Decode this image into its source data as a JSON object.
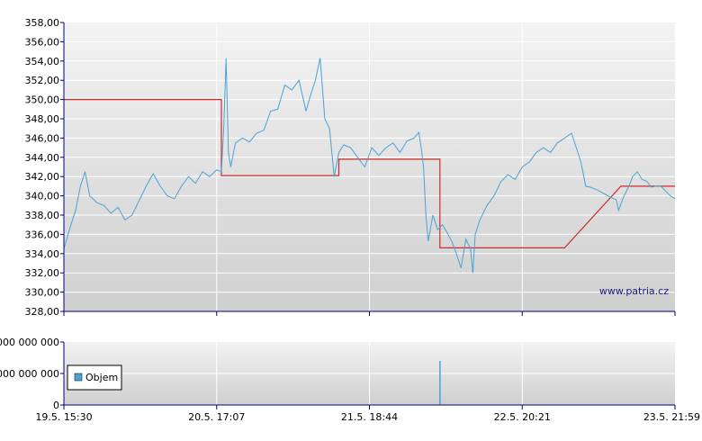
{
  "watermark": "www.patria.cz",
  "colors": {
    "price": "#4aa3d4",
    "reference": "#cc2a2a",
    "volume": "#4aa3d4",
    "grid": "#ffffff",
    "axis": "#000080"
  },
  "chart_data": [
    {
      "type": "line",
      "panel": "price",
      "y_ticks": [
        "358,00",
        "356,00",
        "354,00",
        "352,00",
        "350,00",
        "348,00",
        "346,00",
        "344,00",
        "342,00",
        "340,00",
        "338,00",
        "336,00",
        "334,00",
        "332,00",
        "330,00",
        "328,00"
      ],
      "ylim": [
        328,
        358
      ],
      "grid": true,
      "series": [
        {
          "values": [
            [
              0,
              334.5
            ],
            [
              0.03,
              337.0
            ],
            [
              0.05,
              338.5
            ],
            [
              0.07,
              341.0
            ],
            [
              0.09,
              342.5
            ],
            [
              0.11,
              340.0
            ],
            [
              0.14,
              339.3
            ],
            [
              0.17,
              339.0
            ],
            [
              0.2,
              338.2
            ],
            [
              0.23,
              338.8
            ],
            [
              0.26,
              337.5
            ],
            [
              0.29,
              338.0
            ],
            [
              0.32,
              339.5
            ],
            [
              0.35,
              341.0
            ],
            [
              0.38,
              342.3
            ],
            [
              0.41,
              341.0
            ],
            [
              0.44,
              340.0
            ],
            [
              0.47,
              339.7
            ],
            [
              0.5,
              341.0
            ],
            [
              0.53,
              342.0
            ],
            [
              0.56,
              341.3
            ],
            [
              0.59,
              342.5
            ],
            [
              0.62,
              342.0
            ],
            [
              0.65,
              342.7
            ],
            [
              0.67,
              342.5
            ],
            [
              0.68,
              347.0
            ],
            [
              0.69,
              354.3
            ],
            [
              0.7,
              344.5
            ],
            [
              0.71,
              343.0
            ],
            [
              0.73,
              345.5
            ],
            [
              0.76,
              346.0
            ],
            [
              0.79,
              345.6
            ],
            [
              0.82,
              346.5
            ],
            [
              0.85,
              346.8
            ],
            [
              0.88,
              348.8
            ],
            [
              0.91,
              349.0
            ],
            [
              0.94,
              351.5
            ],
            [
              0.97,
              351.0
            ],
            [
              1.0,
              352.0
            ],
            [
              1.03,
              348.8
            ],
            [
              1.05,
              350.5
            ],
            [
              1.07,
              352.0
            ],
            [
              1.09,
              354.3
            ],
            [
              1.11,
              348.0
            ],
            [
              1.13,
              347.0
            ],
            [
              1.15,
              342.0
            ],
            [
              1.17,
              344.5
            ],
            [
              1.19,
              345.3
            ],
            [
              1.22,
              345.0
            ],
            [
              1.25,
              344.0
            ],
            [
              1.28,
              343.0
            ],
            [
              1.31,
              345.0
            ],
            [
              1.34,
              344.2
            ],
            [
              1.37,
              345.0
            ],
            [
              1.4,
              345.5
            ],
            [
              1.43,
              344.5
            ],
            [
              1.46,
              345.7
            ],
            [
              1.49,
              346.0
            ],
            [
              1.51,
              346.6
            ],
            [
              1.52,
              345.0
            ],
            [
              1.53,
              343.0
            ],
            [
              1.54,
              338.0
            ],
            [
              1.55,
              335.3
            ],
            [
              1.57,
              338.0
            ],
            [
              1.59,
              336.5
            ],
            [
              1.61,
              337.0
            ],
            [
              1.63,
              336.2
            ],
            [
              1.65,
              335.3
            ],
            [
              1.67,
              334.0
            ],
            [
              1.69,
              332.5
            ],
            [
              1.71,
              335.5
            ],
            [
              1.73,
              334.5
            ],
            [
              1.74,
              332.0
            ],
            [
              1.75,
              336.0
            ],
            [
              1.77,
              337.5
            ],
            [
              1.8,
              339.0
            ],
            [
              1.83,
              340.0
            ],
            [
              1.86,
              341.5
            ],
            [
              1.89,
              342.2
            ],
            [
              1.92,
              341.7
            ],
            [
              1.95,
              343.0
            ],
            [
              1.98,
              343.5
            ],
            [
              2.01,
              344.5
            ],
            [
              2.04,
              345.0
            ],
            [
              2.07,
              344.5
            ],
            [
              2.1,
              345.5
            ],
            [
              2.13,
              346.0
            ],
            [
              2.16,
              346.5
            ],
            [
              2.18,
              345.0
            ],
            [
              2.2,
              343.5
            ],
            [
              2.22,
              341.0
            ],
            [
              2.24,
              340.9
            ],
            [
              2.27,
              340.6
            ],
            [
              2.3,
              340.2
            ],
            [
              2.33,
              339.8
            ],
            [
              2.35,
              339.6
            ],
            [
              2.36,
              338.5
            ],
            [
              2.38,
              339.8
            ],
            [
              2.4,
              340.8
            ],
            [
              2.42,
              342.0
            ],
            [
              2.44,
              342.5
            ],
            [
              2.46,
              341.7
            ],
            [
              2.48,
              341.5
            ],
            [
              2.5,
              340.9
            ],
            [
              2.52,
              341.0
            ],
            [
              2.54,
              341.0
            ],
            [
              2.56,
              340.5
            ],
            [
              2.58,
              340.0
            ],
            [
              2.6,
              339.7
            ]
          ]
        },
        {
          "values": [
            [
              0,
              350
            ],
            [
              0.67,
              350
            ],
            [
              0.67,
              342.1
            ],
            [
              1.17,
              342.1
            ],
            [
              1.17,
              343.8
            ],
            [
              1.6,
              343.8
            ],
            [
              1.6,
              334.6
            ],
            [
              2.13,
              334.6
            ],
            [
              2.37,
              341.0
            ],
            [
              2.6,
              341.0
            ]
          ]
        }
      ]
    },
    {
      "type": "bar",
      "panel": "volume",
      "y_ticks": [
        "000 000 000",
        "000 000 000",
        "0"
      ],
      "legend": [
        "Objem"
      ],
      "x_ticks": [
        "19.5. 15:30",
        "20.5. 17:07",
        "21.5. 18:44",
        "22.5. 20:21",
        "23.5. 21:59"
      ],
      "values": [
        [
          1.6,
          0.7
        ]
      ]
    }
  ]
}
